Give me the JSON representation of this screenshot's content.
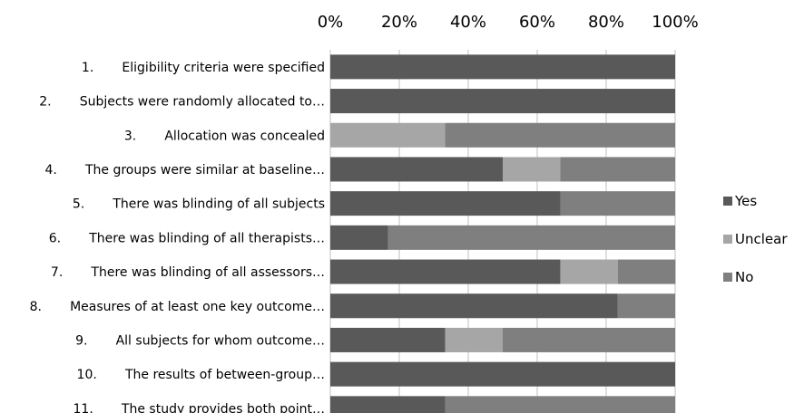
{
  "chart_data": {
    "type": "bar",
    "orientation": "horizontal",
    "stacked": true,
    "normalized": true,
    "x_tick_labels": [
      "0%",
      "20%",
      "40%",
      "60%",
      "80%",
      "100%"
    ],
    "xlim": [
      0,
      100
    ],
    "grid": true,
    "legend_position": "right",
    "categories": [
      "1.       Eligibility criteria were specified",
      "2.       Subjects were randomly allocated to…",
      "3.       Allocation was concealed",
      "4.       The groups were similar at baseline…",
      "5.       There was blinding of all subjects",
      "6.       There was blinding of all therapists…",
      "7.       There was blinding of all assessors…",
      "8.       Measures of at least one key outcome…",
      "9.       All subjects for whom outcome…",
      "10.       The results of between-group…",
      "11.       The study provides both point…"
    ],
    "series": [
      {
        "name": "Yes",
        "color": "#595959",
        "values": [
          100,
          100,
          0,
          50,
          66.7,
          16.7,
          66.7,
          83.3,
          33.3,
          100,
          33.3
        ]
      },
      {
        "name": "Unclear",
        "color": "#a6a6a6",
        "values": [
          0,
          0,
          33.3,
          16.7,
          0,
          0,
          16.7,
          0,
          16.7,
          0,
          0
        ]
      },
      {
        "name": "No",
        "color": "#7f7f7f",
        "values": [
          0,
          0,
          66.7,
          33.3,
          33.3,
          83.3,
          16.7,
          16.7,
          50,
          0,
          66.7
        ]
      }
    ]
  }
}
